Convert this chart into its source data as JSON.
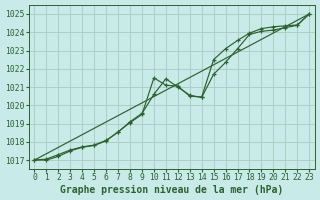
{
  "title": "Graphe pression niveau de la mer (hPa)",
  "bg_color": "#c8eae8",
  "grid_color": "#a8ccbe",
  "line_color": "#2d622d",
  "x_min": -0.5,
  "x_max": 23.5,
  "y_min": 1016.5,
  "y_max": 1025.5,
  "yticks": [
    1017,
    1018,
    1019,
    1020,
    1021,
    1022,
    1023,
    1024,
    1025
  ],
  "xticks": [
    0,
    1,
    2,
    3,
    4,
    5,
    6,
    7,
    8,
    9,
    10,
    11,
    12,
    13,
    14,
    15,
    16,
    17,
    18,
    19,
    20,
    21,
    22,
    23
  ],
  "series1_x": [
    0,
    1,
    2,
    3,
    4,
    5,
    6,
    7,
    8,
    9,
    10,
    11,
    12,
    13,
    14,
    15,
    16,
    17,
    18,
    19,
    20,
    21,
    22,
    23
  ],
  "series1": [
    1017.0,
    1017.0,
    1017.2,
    1017.5,
    1017.7,
    1017.8,
    1018.05,
    1018.55,
    1019.05,
    1019.5,
    1021.5,
    1021.1,
    1021.05,
    1020.5,
    1020.45,
    1022.5,
    1023.1,
    1023.55,
    1023.95,
    1024.2,
    1024.3,
    1024.35,
    1024.4,
    1025.0
  ],
  "series2_x": [
    0,
    1,
    2,
    3,
    4,
    5,
    6,
    7,
    8,
    9,
    10,
    11,
    12,
    13,
    14,
    15,
    16,
    17,
    18,
    19,
    20,
    21,
    22,
    23
  ],
  "series2": [
    1017.0,
    1017.05,
    1017.3,
    1017.55,
    1017.72,
    1017.82,
    1018.08,
    1018.52,
    1019.1,
    1019.55,
    1020.6,
    1021.45,
    1021.0,
    1020.55,
    1020.43,
    1021.7,
    1022.35,
    1023.1,
    1023.88,
    1024.05,
    1024.12,
    1024.25,
    1024.38,
    1025.0
  ],
  "trend_x": [
    0,
    23
  ],
  "trend_y": [
    1017.0,
    1025.0
  ],
  "title_fontsize": 7.0,
  "tick_fontsize": 5.8
}
